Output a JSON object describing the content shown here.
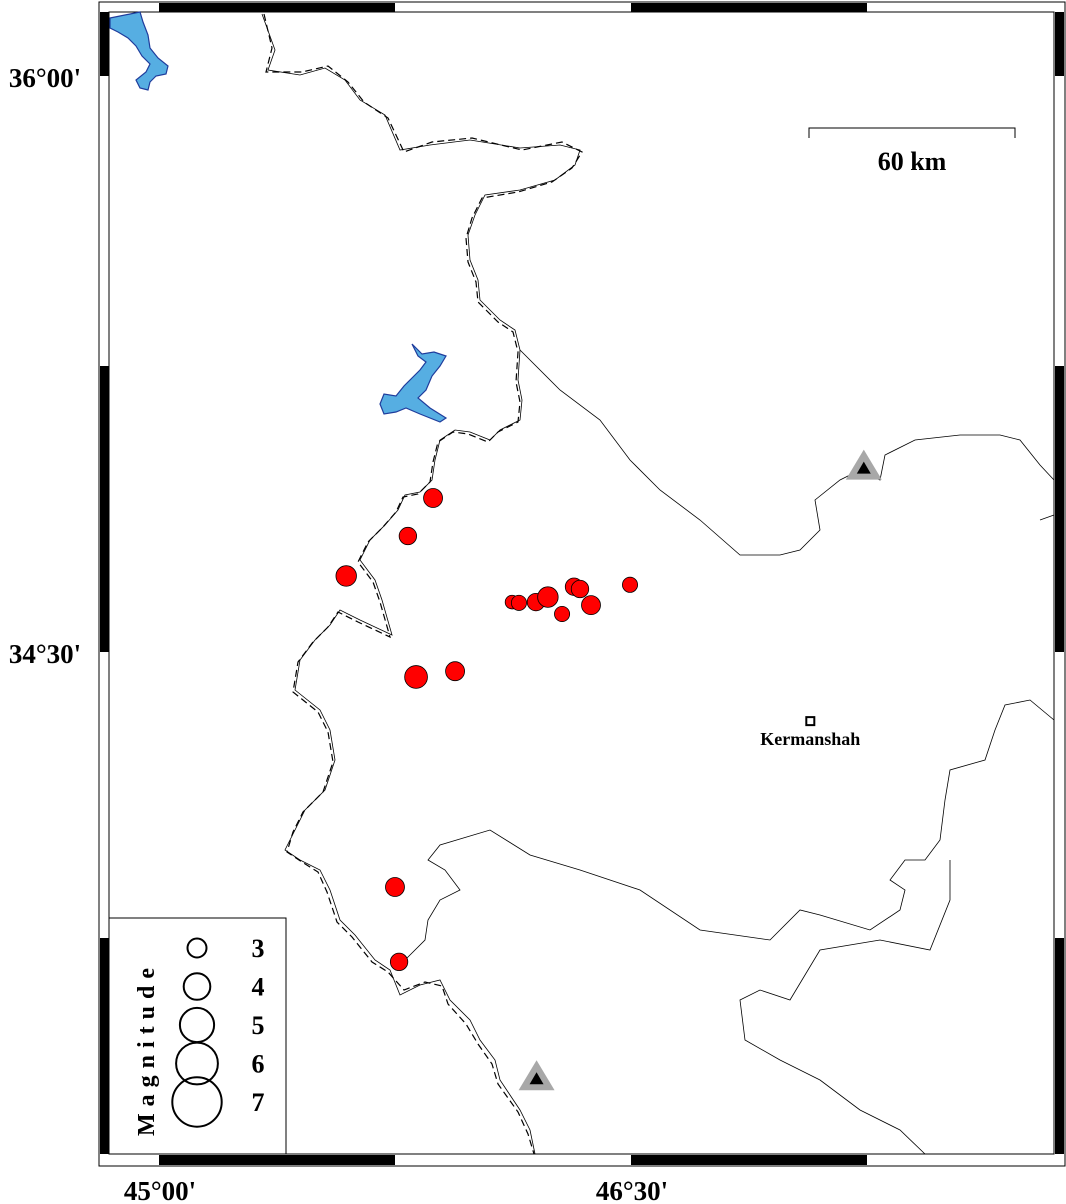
{
  "map": {
    "axes": {
      "lon_labels": [
        {
          "value": 45.0,
          "text": "45°00'"
        },
        {
          "value": 46.5,
          "text": "46°30'"
        }
      ],
      "lat_labels": [
        {
          "value": 36.0,
          "text": "36°00'"
        },
        {
          "value": 34.5,
          "text": "34°30'"
        }
      ]
    },
    "scale_bar": {
      "label": "60 km"
    },
    "city": {
      "name": "Kermanshah",
      "lon": 47.07,
      "lat": 34.32
    },
    "stations": [
      {
        "lon": 47.24,
        "lat": 34.98
      },
      {
        "lon": 46.2,
        "lat": 33.39
      }
    ],
    "events": [
      {
        "lon": 45.871,
        "lat": 34.901,
        "mag": 3.0
      },
      {
        "lon": 45.791,
        "lat": 34.802,
        "mag": 2.8
      },
      {
        "lon": 45.595,
        "lat": 34.698,
        "mag": 3.2
      },
      {
        "lon": 46.122,
        "lat": 34.63,
        "mag": 2.3
      },
      {
        "lon": 46.144,
        "lat": 34.628,
        "mag": 2.5
      },
      {
        "lon": 46.198,
        "lat": 34.63,
        "mag": 2.8
      },
      {
        "lon": 46.236,
        "lat": 34.643,
        "mag": 3.2
      },
      {
        "lon": 46.281,
        "lat": 34.599,
        "mag": 2.5
      },
      {
        "lon": 46.319,
        "lat": 34.67,
        "mag": 2.8
      },
      {
        "lon": 46.338,
        "lat": 34.664,
        "mag": 2.8
      },
      {
        "lon": 46.373,
        "lat": 34.622,
        "mag": 3.0
      },
      {
        "lon": 46.497,
        "lat": 34.675,
        "mag": 2.5
      },
      {
        "lon": 45.817,
        "lat": 34.435,
        "mag": 3.5
      },
      {
        "lon": 45.941,
        "lat": 34.45,
        "mag": 3.0
      },
      {
        "lon": 45.75,
        "lat": 33.888,
        "mag": 3.0
      },
      {
        "lon": 45.763,
        "lat": 33.693,
        "mag": 2.8
      }
    ],
    "legend": {
      "title": "Magnitude",
      "entries": [
        {
          "mag": 3,
          "label": "3"
        },
        {
          "mag": 4,
          "label": "4"
        },
        {
          "mag": 5,
          "label": "5"
        },
        {
          "mag": 6,
          "label": "6"
        },
        {
          "mag": 7,
          "label": "7"
        }
      ]
    },
    "colors": {
      "event": "#ff0000",
      "water": "#56aee2",
      "water_outline": "#1f3c9c",
      "station_halo": "#a8a8a8",
      "station": "#000000"
    }
  }
}
